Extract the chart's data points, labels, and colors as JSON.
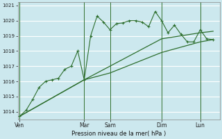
{
  "xlabel": "Pression niveau de la mer( hPa )",
  "bg_color": "#cce8ee",
  "grid_color": "#ffffff",
  "line_color": "#2d6e2d",
  "ylim": [
    1013.5,
    1021.2
  ],
  "yticks": [
    1014,
    1015,
    1016,
    1017,
    1018,
    1019,
    1020,
    1021
  ],
  "day_labels": [
    "Ven",
    "Mar",
    "Sam",
    "Dim",
    "Lun"
  ],
  "day_x": [
    0,
    10,
    14,
    22,
    28
  ],
  "xlim": [
    -0.3,
    31.0
  ],
  "series1_x": [
    0,
    1,
    2,
    3,
    4,
    5,
    6,
    7,
    8,
    9,
    10,
    11,
    12,
    13,
    14,
    15,
    16,
    17,
    18,
    19,
    20,
    21,
    22,
    23,
    24,
    25,
    26,
    27,
    28,
    29,
    30
  ],
  "series1_y": [
    1013.7,
    1014.1,
    1014.8,
    1015.6,
    1016.0,
    1016.1,
    1016.2,
    1016.8,
    1017.0,
    1018.0,
    1016.1,
    1019.0,
    1020.3,
    1019.9,
    1019.4,
    1019.8,
    1019.85,
    1020.0,
    1020.0,
    1019.9,
    1019.6,
    1020.6,
    1020.0,
    1019.2,
    1019.7,
    1019.1,
    1018.6,
    1018.6,
    1019.4,
    1018.8,
    1018.75
  ],
  "series2_x": [
    0,
    10,
    14,
    22,
    28,
    30
  ],
  "series2_y": [
    1013.7,
    1016.1,
    1016.55,
    1017.9,
    1018.6,
    1018.75
  ],
  "series3_x": [
    0,
    10,
    14,
    22,
    28,
    30
  ],
  "series3_y": [
    1013.7,
    1016.1,
    1017.0,
    1018.8,
    1019.2,
    1019.3
  ]
}
